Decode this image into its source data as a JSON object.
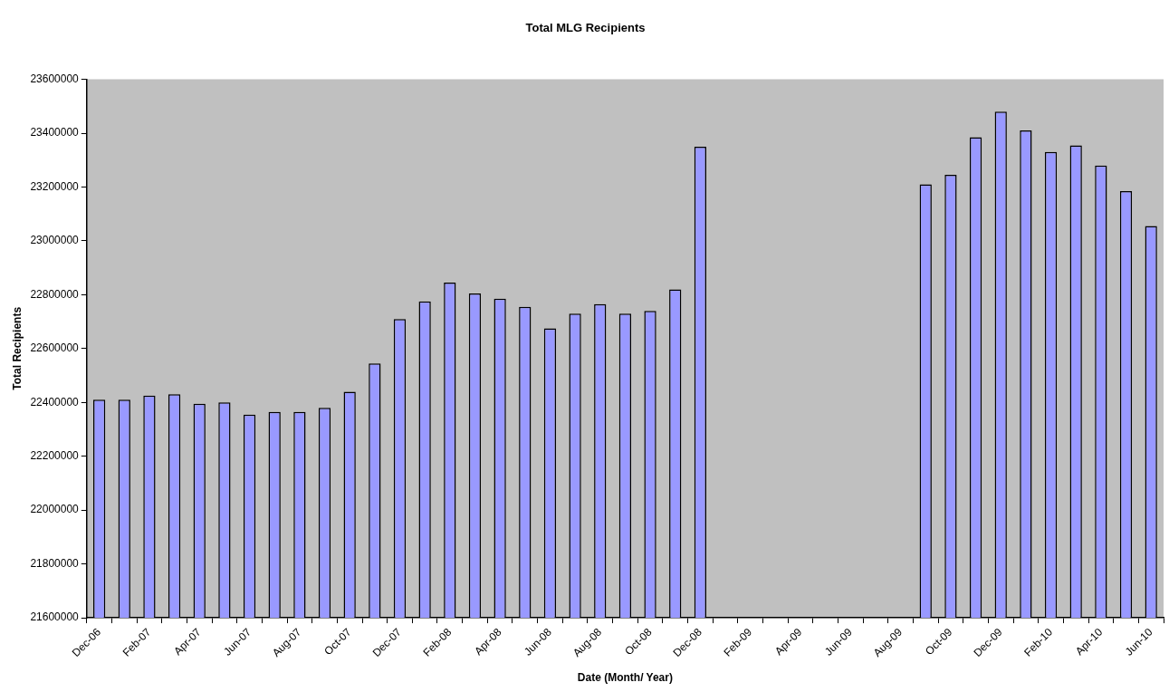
{
  "chart_data": {
    "type": "bar",
    "title": "Total MLG Recipients",
    "xlabel": "Date (Month/ Year)",
    "ylabel": "Total Recipients",
    "categories": [
      "Dec-06",
      null,
      "Feb-07",
      null,
      "Apr-07",
      null,
      "Jun-07",
      null,
      "Aug-07",
      null,
      "Oct-07",
      null,
      "Dec-07",
      null,
      "Feb-08",
      null,
      "Apr-08",
      null,
      "Jun-08",
      null,
      "Aug-08",
      null,
      "Oct-08",
      null,
      "Dec-08",
      null,
      "Feb-09",
      null,
      "Apr-09",
      null,
      "Jun-09",
      null,
      "Aug-09",
      null,
      "Oct-09",
      null,
      "Dec-09",
      null,
      "Feb-10",
      null,
      "Apr-10",
      null,
      "Jun-10"
    ],
    "values": [
      22410000,
      22410000,
      22425000,
      22430000,
      22395000,
      22400000,
      22355000,
      22365000,
      22365000,
      22380000,
      22440000,
      22545000,
      22710000,
      22775000,
      22845000,
      22805000,
      22785000,
      22755000,
      22675000,
      22730000,
      22765000,
      22730000,
      22740000,
      22820000,
      23350000,
      null,
      null,
      null,
      null,
      null,
      null,
      null,
      null,
      23210000,
      23245000,
      23385000,
      23480000,
      23410000,
      23330000,
      23355000,
      23280000,
      23185000,
      23055000
    ],
    "color": "#9999ff",
    "ylim": [
      21600000,
      23600000
    ],
    "yticks": [
      21600000,
      21800000,
      22000000,
      22200000,
      22400000,
      22600000,
      22800000,
      23000000,
      23200000,
      23400000,
      23600000
    ],
    "grid": false,
    "legend": false
  }
}
